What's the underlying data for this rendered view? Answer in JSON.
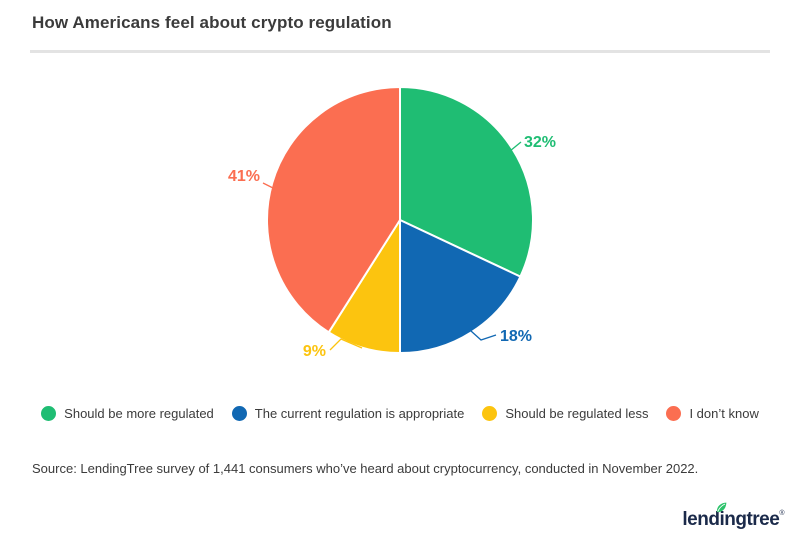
{
  "header": {
    "title": "How Americans feel about crypto regulation"
  },
  "chart_data": {
    "type": "pie",
    "title": "How Americans feel about crypto regulation",
    "slices": [
      {
        "label": "Should be more regulated",
        "value": 32,
        "color": "#1fbd73"
      },
      {
        "label": "The current regulation is appropriate",
        "value": 18,
        "color": "#1168b3"
      },
      {
        "label": "Should be regulated less",
        "value": 9,
        "color": "#fcc40f"
      },
      {
        "label": "I don’t know",
        "value": 41,
        "color": "#fb6e51"
      }
    ],
    "start_angle_deg": 0,
    "direction": "clockwise",
    "value_suffix": "%",
    "labels_outside": true,
    "label_color_matches_slice": true,
    "legend_position": "bottom",
    "slice_gap_color": "#ffffff"
  },
  "source": {
    "text": "Source: LendingTree survey of 1,441 consumers who’ve heard about cryptocurrency, conducted in November 2022."
  },
  "logo": {
    "part1": "lend",
    "i": "i",
    "part2": "ngtree",
    "registered": "®",
    "leaf_color": "#2bc26a",
    "text_color": "#1b2a4a"
  },
  "colors": {
    "background": "#ffffff",
    "title_text": "#3b3b3b",
    "divider": "#e3e3e3",
    "body_text": "#3b3b3b"
  }
}
